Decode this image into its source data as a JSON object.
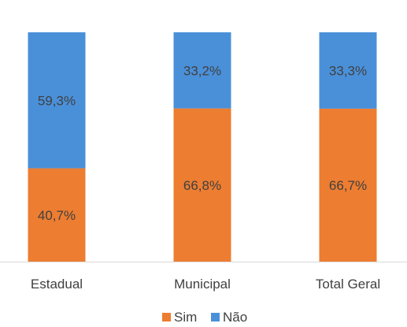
{
  "chart_data": {
    "type": "bar",
    "stacked": true,
    "percent": true,
    "categories": [
      "Estadual",
      "Municipal",
      "Total Geral"
    ],
    "series": [
      {
        "name": "Sim",
        "values": [
          40.7,
          66.8,
          66.7
        ],
        "labels": [
          "40,7%",
          "66,8%",
          "66,7%"
        ],
        "color": "#ED7D31"
      },
      {
        "name": "Não",
        "values": [
          59.3,
          33.2,
          33.3
        ],
        "labels": [
          "59,3%",
          "33,2%",
          "33,3%"
        ],
        "color": "#4A90D9"
      }
    ],
    "ylim": [
      0,
      100
    ],
    "grid": false,
    "legend": "bottom"
  }
}
